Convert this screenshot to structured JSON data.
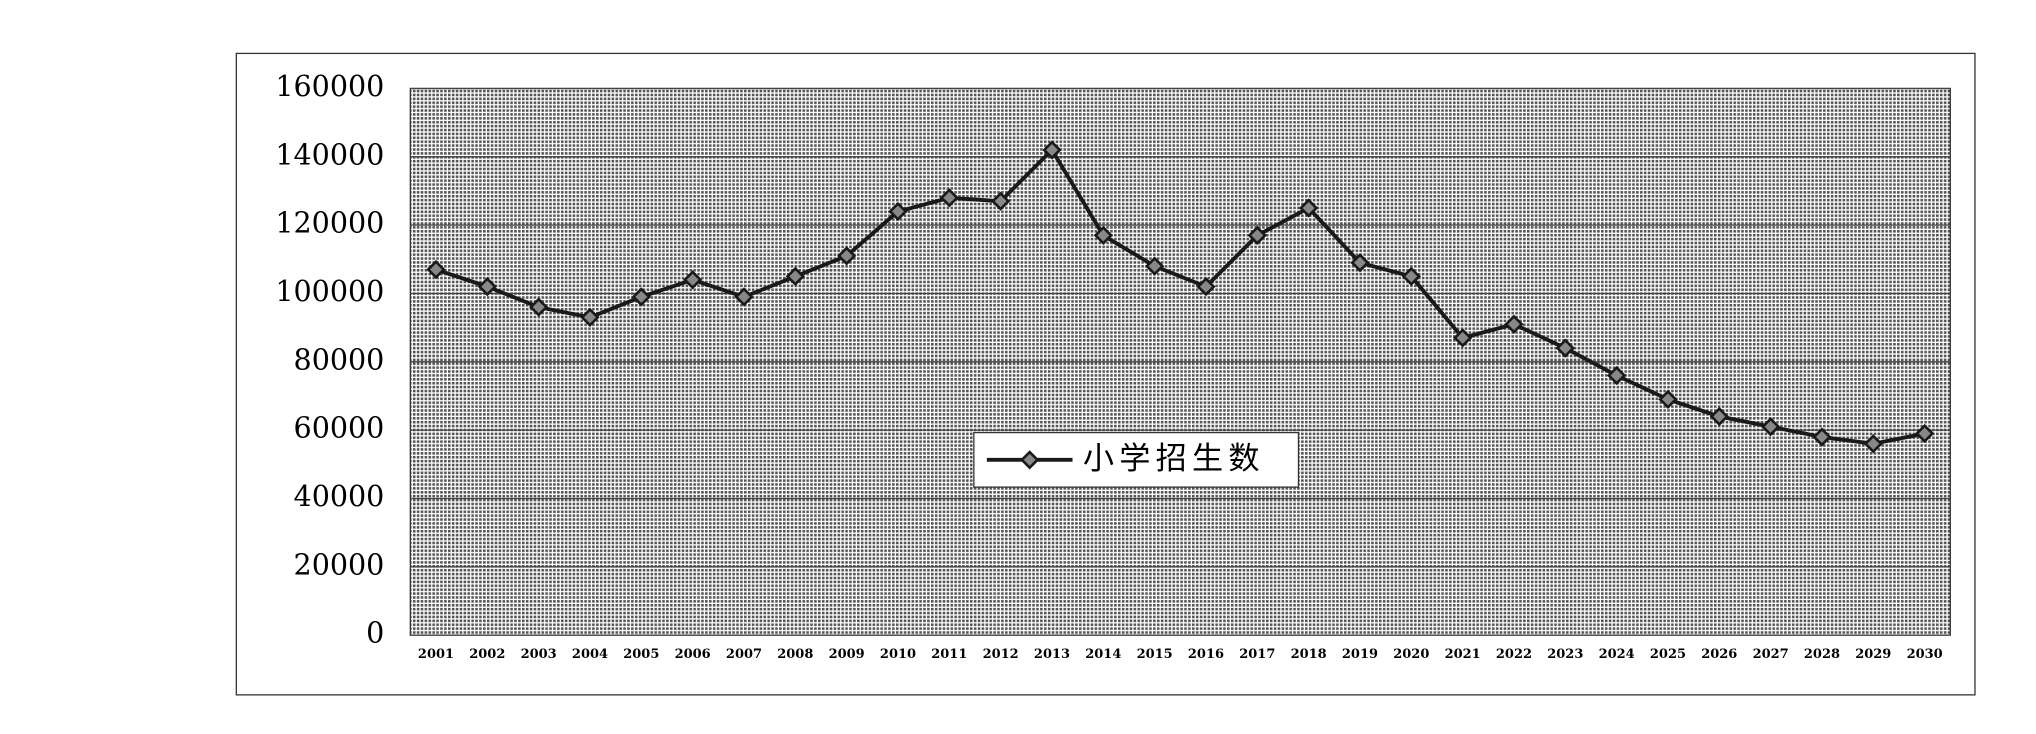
{
  "chart_data": {
    "type": "line",
    "categories": [
      "2001",
      "2002",
      "2003",
      "2004",
      "2005",
      "2006",
      "2007",
      "2008",
      "2009",
      "2010",
      "2011",
      "2012",
      "2013",
      "2014",
      "2015",
      "2016",
      "2017",
      "2018",
      "2019",
      "2020",
      "2021",
      "2022",
      "2023",
      "2024",
      "2025",
      "2026",
      "2027",
      "2028",
      "2029",
      "2030"
    ],
    "series": [
      {
        "name": "小学招生数",
        "color": "#1a1a1a",
        "values": [
          107000,
          102000,
          96000,
          93000,
          99000,
          104000,
          99000,
          105000,
          111000,
          124000,
          128000,
          127000,
          142000,
          117000,
          108000,
          102000,
          117000,
          125000,
          109000,
          105000,
          87000,
          91000,
          84000,
          76000,
          69000,
          64000,
          61000,
          58000,
          56000,
          59000
        ]
      }
    ],
    "ylim": [
      0,
      160000
    ],
    "yticks": [
      0,
      20000,
      40000,
      60000,
      80000,
      100000,
      120000,
      140000,
      160000
    ],
    "grid": true,
    "legend": "center"
  }
}
